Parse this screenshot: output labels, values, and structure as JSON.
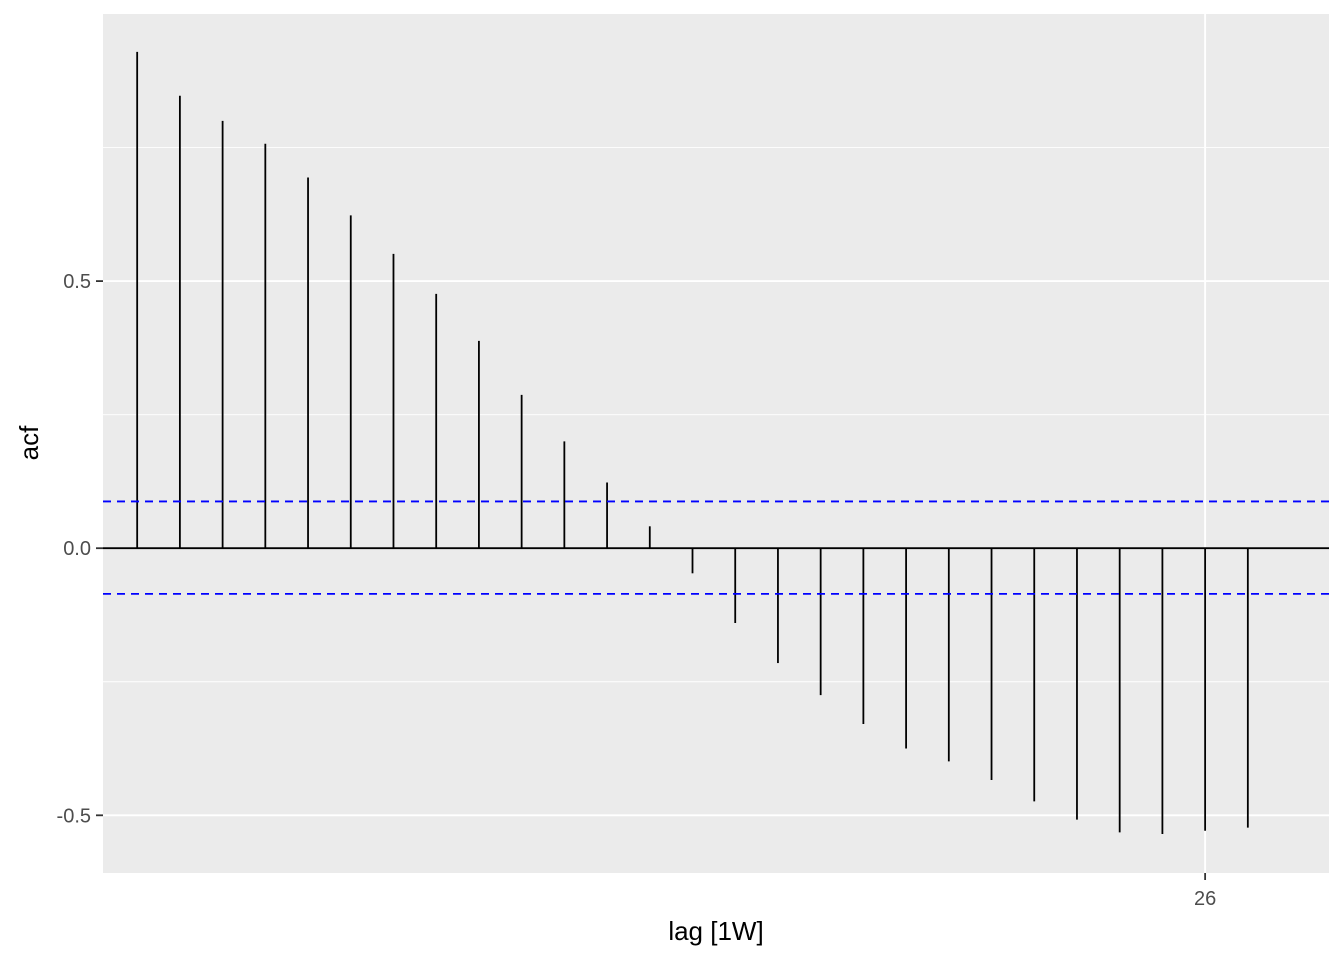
{
  "chart_data": {
    "type": "bar",
    "xlabel": "lag [1W]",
    "ylabel": "acf",
    "x": [
      1,
      2,
      3,
      4,
      5,
      6,
      7,
      8,
      9,
      10,
      11,
      12,
      13,
      14,
      15,
      16,
      17,
      18,
      19,
      20,
      21,
      22,
      23,
      24,
      25,
      26,
      27
    ],
    "values": [
      0.929,
      0.847,
      0.8,
      0.757,
      0.694,
      0.623,
      0.551,
      0.476,
      0.388,
      0.287,
      0.2,
      0.123,
      0.041,
      -0.047,
      -0.14,
      -0.215,
      -0.275,
      -0.329,
      -0.375,
      -0.399,
      -0.434,
      -0.474,
      -0.508,
      -0.532,
      -0.535,
      -0.529,
      -0.523
    ],
    "conf_bounds": [
      0.0875,
      -0.0855
    ],
    "x_ticks": [
      26
    ],
    "x_tick_labels": [
      "26"
    ],
    "y_ticks": [
      -0.5,
      0.0,
      0.5
    ],
    "y_tick_labels": [
      "-0.5",
      "0.0",
      "0.5"
    ],
    "xlim": [
      0.2,
      28.9
    ],
    "ylim": [
      -0.608,
      1.0
    ],
    "grid": true,
    "colors": {
      "panel": "#ebebeb",
      "grid": "#ffffff",
      "bar": "#000000",
      "bound": "#0000ff"
    }
  }
}
